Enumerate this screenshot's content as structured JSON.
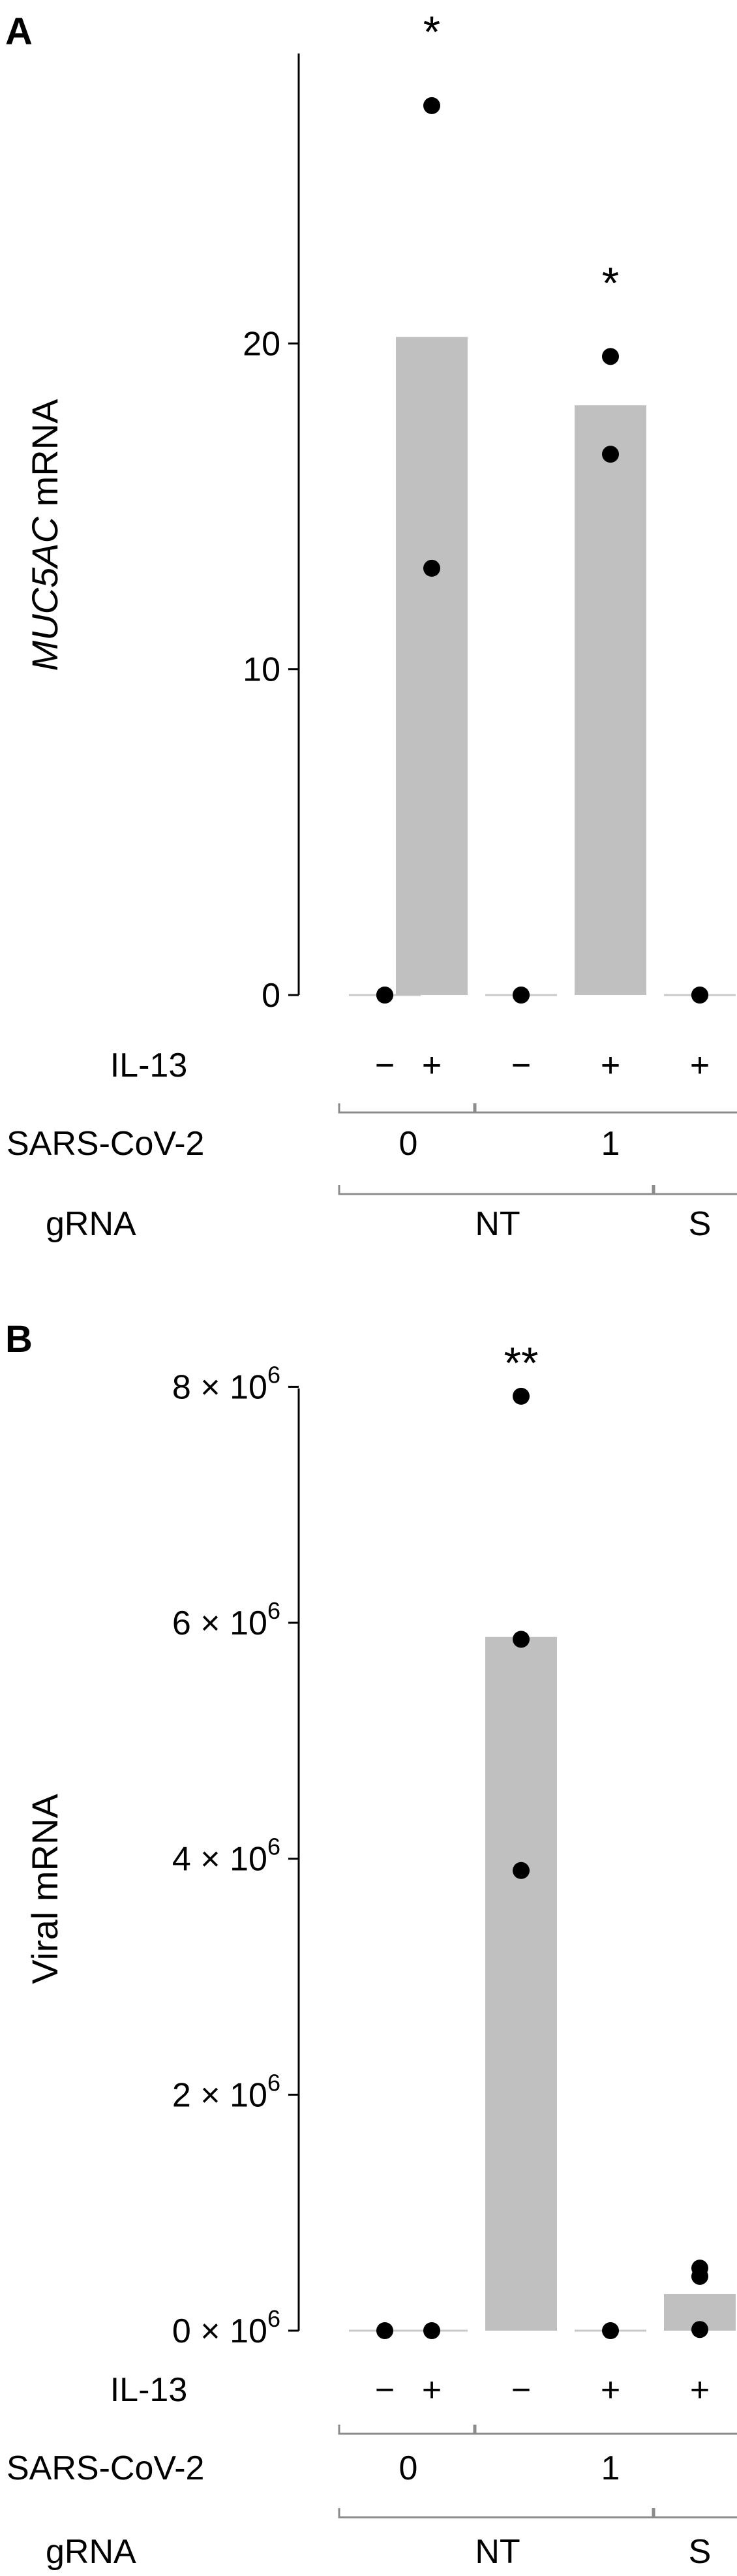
{
  "chart_data": [
    {
      "type": "bar",
      "panel": "A",
      "ylabel_italic": "MUC5AC",
      "ylabel_rest": " mRNA",
      "ylim": [
        0,
        29
      ],
      "yticks": [
        {
          "value": 0,
          "label": "0"
        },
        {
          "value": 10,
          "label": "10"
        },
        {
          "value": 20,
          "label": "20"
        }
      ],
      "bars": [
        {
          "il13": "−",
          "value": 0.0,
          "points": [
            0.0,
            0.0
          ],
          "sig": ""
        },
        {
          "il13": "+",
          "value": 20.2,
          "points": [
            27.3,
            13.1
          ],
          "sig": "*"
        },
        {
          "il13": "−",
          "value": 0.0,
          "points": [
            0.0,
            0.0
          ],
          "sig": ""
        },
        {
          "il13": "+",
          "value": 18.1,
          "points": [
            19.6,
            16.6
          ],
          "sig": "*"
        },
        {
          "il13": "+",
          "value": 0.0,
          "points": [
            0.0,
            0.0
          ],
          "sig": ""
        }
      ],
      "row_labels": {
        "il13": "IL-13",
        "sars": "SARS-CoV-2",
        "grna": "gRNA"
      },
      "sars_groups": [
        {
          "label": "0",
          "from": 0,
          "to": 1
        },
        {
          "label": "1",
          "from": 2,
          "to": 4
        }
      ],
      "grna_groups": [
        {
          "label": "NT",
          "from": 0,
          "to": 3
        },
        {
          "label": "S",
          "from": 4,
          "to": 4
        }
      ]
    },
    {
      "type": "bar",
      "panel": "B",
      "ylabel": "Viral mRNA",
      "ylim": [
        0,
        8500000
      ],
      "yticks": [
        {
          "value": 0,
          "mant": "0",
          "exp": "6"
        },
        {
          "value": 2000000,
          "mant": "2",
          "exp": "6"
        },
        {
          "value": 4000000,
          "mant": "4",
          "exp": "6"
        },
        {
          "value": 6000000,
          "mant": "6",
          "exp": "6"
        },
        {
          "value": 8000000,
          "mant": "8",
          "exp": "6"
        }
      ],
      "tick_times": "×",
      "tick_base": "10",
      "bars": [
        {
          "il13": "−",
          "value": 0,
          "points": [
            0
          ],
          "sig": ""
        },
        {
          "il13": "+",
          "value": 0,
          "points": [
            0
          ],
          "sig": ""
        },
        {
          "il13": "−",
          "value": 5880000,
          "points": [
            7920000,
            5860000,
            3900000
          ],
          "sig": "**"
        },
        {
          "il13": "+",
          "value": 0,
          "points": [
            0
          ],
          "sig": ""
        },
        {
          "il13": "+",
          "value": 310000,
          "points": [
            530000,
            460000,
            10000
          ],
          "sig": ""
        }
      ],
      "row_labels": {
        "il13": "IL-13",
        "sars": "SARS-CoV-2",
        "grna": "gRNA"
      },
      "sars_groups": [
        {
          "label": "0",
          "from": 0,
          "to": 1
        },
        {
          "label": "1",
          "from": 2,
          "to": 4
        }
      ],
      "grna_groups": [
        {
          "label": "NT",
          "from": 0,
          "to": 3
        },
        {
          "label": "S",
          "from": 4,
          "to": 4
        }
      ]
    }
  ]
}
